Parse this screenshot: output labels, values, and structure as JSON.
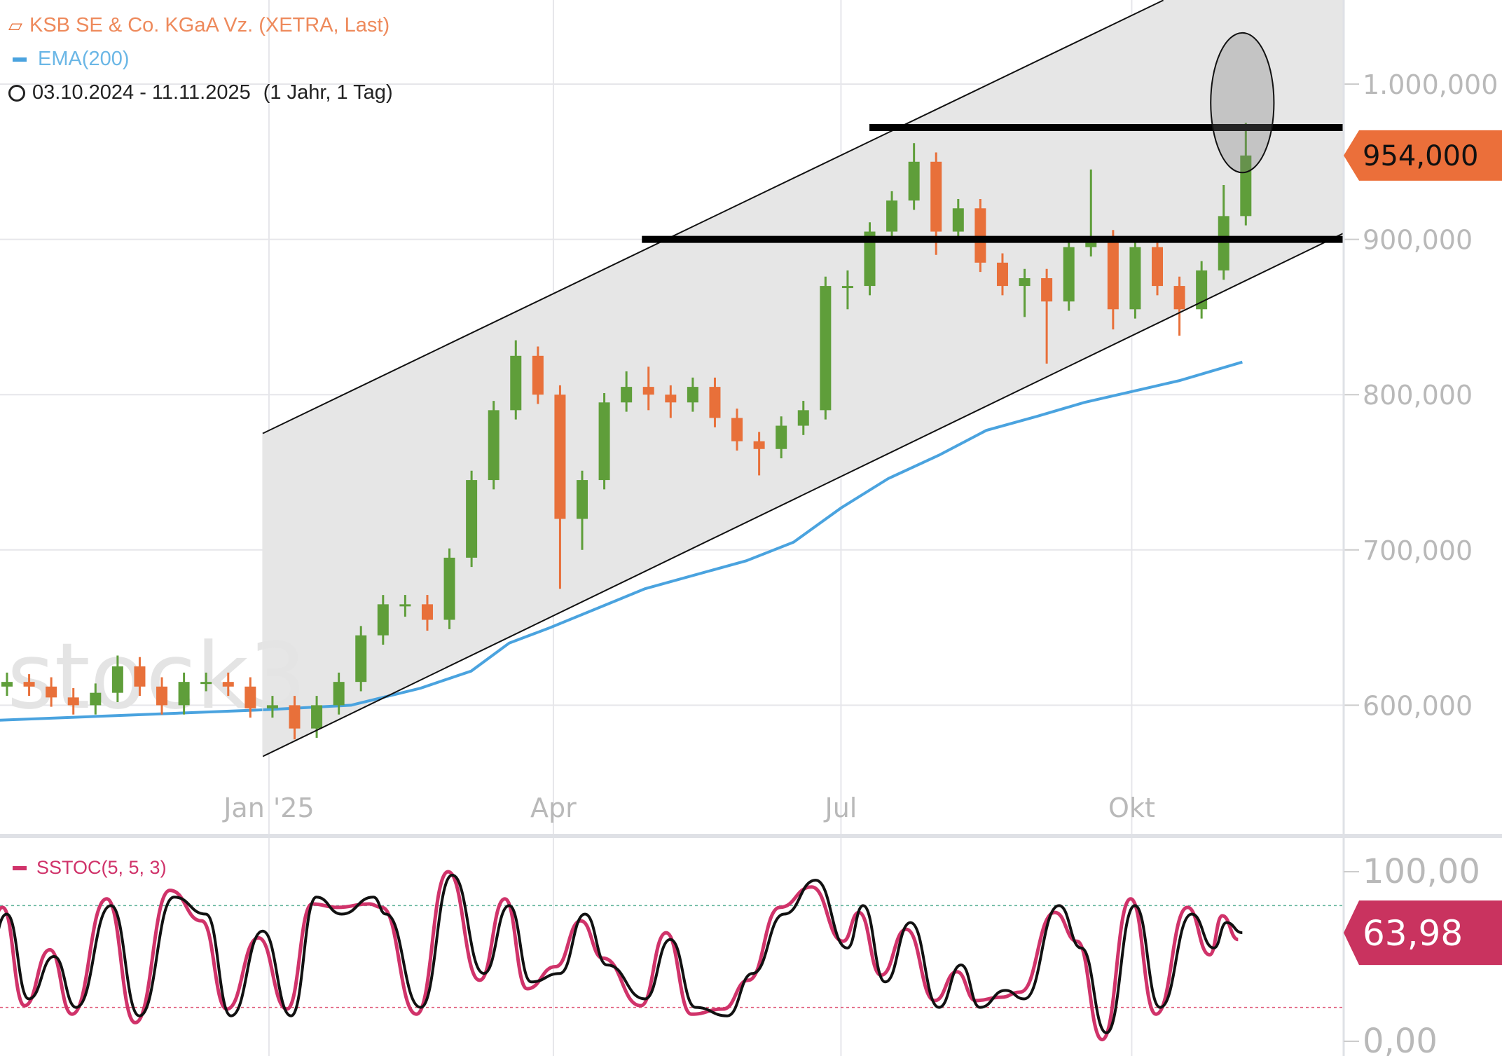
{
  "legend": {
    "instrument": "KSB SE & Co. KGaA Vz. (XETRA, Last)",
    "ema": "EMA(200)",
    "range": "03.10.2024 - 11.11.2025",
    "range_detail": "(1 Jahr, 1 Tag)",
    "stoch": "SSTOC(5, 5, 3)",
    "watermark": "stock3"
  },
  "colors": {
    "up": "#5f9e3a",
    "down": "#e8703a",
    "ema": "#4aa3df",
    "stoch_fast": "#d0336a",
    "stoch_slow": "#111111",
    "last_price_badge": "#eb6f3a",
    "stoch_badge": "#c9335f"
  },
  "chart_data": [
    {
      "type": "candlestick",
      "ylim": [
        540,
        1040
      ],
      "grid": true,
      "y_ticks": [
        {
          "value": 1000,
          "label": "1.000,000"
        },
        {
          "value": 900,
          "label": "900,000"
        },
        {
          "value": 800,
          "label": "800,000"
        },
        {
          "value": 700,
          "label": "700,000"
        },
        {
          "value": 600,
          "label": "600,000"
        }
      ],
      "x_ticks": [
        {
          "date": "2025-01-01",
          "label": "Jan '25"
        },
        {
          "date": "2025-04-01",
          "label": "Apr"
        },
        {
          "date": "2025-07-01",
          "label": "Jul"
        },
        {
          "date": "2025-10-01",
          "label": "Okt"
        }
      ],
      "last_price": {
        "value": 954,
        "label": "954,000"
      },
      "candles": [
        [
          "2024-10-07",
          612,
          621,
          606,
          615
        ],
        [
          "2024-10-14",
          615,
          620,
          606,
          612
        ],
        [
          "2024-10-21",
          612,
          618,
          599,
          605
        ],
        [
          "2024-10-28",
          605,
          611,
          594,
          600
        ],
        [
          "2024-11-04",
          600,
          614,
          594,
          608
        ],
        [
          "2024-11-11",
          608,
          632,
          602,
          625
        ],
        [
          "2024-11-18",
          625,
          631,
          606,
          612
        ],
        [
          "2024-11-25",
          612,
          618,
          594,
          600
        ],
        [
          "2024-12-02",
          600,
          621,
          594,
          615
        ],
        [
          "2024-12-09",
          615,
          621,
          609,
          615
        ],
        [
          "2024-12-16",
          615,
          621,
          606,
          612
        ],
        [
          "2024-12-23",
          612,
          618,
          592,
          598
        ],
        [
          "2024-12-30",
          598,
          606,
          592,
          600
        ],
        [
          "2025-01-06",
          600,
          606,
          578,
          585
        ],
        [
          "2025-01-13",
          585,
          606,
          579,
          600
        ],
        [
          "2025-01-20",
          600,
          621,
          594,
          615
        ],
        [
          "2025-01-27",
          615,
          651,
          609,
          645
        ],
        [
          "2025-02-03",
          645,
          671,
          639,
          665
        ],
        [
          "2025-02-10",
          665,
          671,
          657,
          665
        ],
        [
          "2025-02-17",
          665,
          671,
          648,
          655
        ],
        [
          "2025-02-24",
          655,
          701,
          649,
          695
        ],
        [
          "2025-03-03",
          695,
          751,
          689,
          745
        ],
        [
          "2025-03-10",
          745,
          796,
          739,
          790
        ],
        [
          "2025-03-17",
          790,
          835,
          784,
          825
        ],
        [
          "2025-03-24",
          825,
          831,
          794,
          800
        ],
        [
          "2025-03-31",
          800,
          806,
          675,
          720
        ],
        [
          "2025-04-07",
          720,
          751,
          700,
          745
        ],
        [
          "2025-04-14",
          745,
          801,
          739,
          795
        ],
        [
          "2025-04-21",
          795,
          815,
          789,
          805
        ],
        [
          "2025-04-28",
          805,
          818,
          790,
          800
        ],
        [
          "2025-05-05",
          800,
          806,
          785,
          795
        ],
        [
          "2025-05-12",
          795,
          811,
          789,
          805
        ],
        [
          "2025-05-19",
          805,
          811,
          779,
          785
        ],
        [
          "2025-05-26",
          785,
          791,
          764,
          770
        ],
        [
          "2025-06-02",
          770,
          776,
          748,
          765
        ],
        [
          "2025-06-09",
          765,
          786,
          759,
          780
        ],
        [
          "2025-06-16",
          780,
          796,
          774,
          790
        ],
        [
          "2025-06-23",
          790,
          876,
          784,
          870
        ],
        [
          "2025-06-30",
          870,
          880,
          855,
          870
        ],
        [
          "2025-07-07",
          870,
          911,
          864,
          905
        ],
        [
          "2025-07-14",
          905,
          931,
          899,
          925
        ],
        [
          "2025-07-21",
          925,
          962,
          919,
          950
        ],
        [
          "2025-07-28",
          950,
          956,
          890,
          905
        ],
        [
          "2025-08-04",
          905,
          926,
          899,
          920
        ],
        [
          "2025-08-11",
          920,
          926,
          879,
          885
        ],
        [
          "2025-08-18",
          885,
          891,
          864,
          870
        ],
        [
          "2025-08-25",
          870,
          881,
          850,
          875
        ],
        [
          "2025-09-01",
          875,
          881,
          820,
          860
        ],
        [
          "2025-09-08",
          860,
          901,
          854,
          895
        ],
        [
          "2025-09-15",
          895,
          945,
          889,
          900
        ],
        [
          "2025-09-22",
          900,
          906,
          842,
          855
        ],
        [
          "2025-09-29",
          855,
          901,
          849,
          895
        ],
        [
          "2025-10-06",
          895,
          901,
          864,
          870
        ],
        [
          "2025-10-13",
          870,
          876,
          838,
          855
        ],
        [
          "2025-10-20",
          855,
          886,
          849,
          880
        ],
        [
          "2025-10-27",
          880,
          935,
          874,
          915
        ],
        [
          "2025-11-03",
          915,
          975,
          909,
          954
        ]
      ],
      "ema200": [
        [
          "2024-10-03",
          590
        ],
        [
          "2024-12-30",
          597
        ],
        [
          "2025-01-27",
          600
        ],
        [
          "2025-02-18",
          611
        ],
        [
          "2025-03-06",
          622
        ],
        [
          "2025-03-18",
          640
        ],
        [
          "2025-03-31",
          650
        ],
        [
          "2025-04-30",
          675
        ],
        [
          "2025-06-01",
          693
        ],
        [
          "2025-06-16",
          705
        ],
        [
          "2025-07-01",
          727
        ],
        [
          "2025-07-16",
          746
        ],
        [
          "2025-08-01",
          761
        ],
        [
          "2025-08-16",
          777
        ],
        [
          "2025-09-01",
          786
        ],
        [
          "2025-09-16",
          795
        ],
        [
          "2025-10-01",
          802
        ],
        [
          "2025-10-16",
          809
        ],
        [
          "2025-11-05",
          821
        ]
      ],
      "annotations": {
        "channel_upper": [
          [
            "2024-12-30",
            775
          ],
          [
            "2025-10-11",
            1054
          ]
        ],
        "channel_lower": [
          [
            "2024-12-30",
            567
          ],
          [
            "2025-12-02",
            899
          ]
        ],
        "horizontal_lines": [
          {
            "from": "2025-04-29",
            "to": "2025-12-02",
            "value": 900
          },
          {
            "from": "2025-07-10",
            "to": "2025-12-02",
            "value": 972
          }
        ],
        "ellipse": {
          "center": [
            "2025-11-05",
            988
          ],
          "radius_days": 10,
          "radius_price": 45
        }
      }
    },
    {
      "type": "line",
      "title": "SSTOC(5, 5, 3)",
      "ylim": [
        0,
        100
      ],
      "y_ticks": [
        {
          "value": 100,
          "label": "100,00"
        },
        {
          "value": 0,
          "label": "0,00"
        }
      ],
      "levels": [
        80,
        20
      ],
      "last_value": {
        "value": 63.98,
        "label": "63,98"
      },
      "slow": [
        [
          "2024-10-03",
          40
        ],
        [
          "2024-10-10",
          75
        ],
        [
          "2024-10-17",
          25
        ],
        [
          "2024-10-25",
          50
        ],
        [
          "2024-11-01",
          20
        ],
        [
          "2024-11-12",
          80
        ],
        [
          "2024-11-21",
          15
        ],
        [
          "2024-12-02",
          85
        ],
        [
          "2024-12-12",
          75
        ],
        [
          "2024-12-20",
          15
        ],
        [
          "2024-12-30",
          65
        ],
        [
          "2025-01-08",
          15
        ],
        [
          "2025-01-16",
          85
        ],
        [
          "2025-01-24",
          75
        ],
        [
          "2025-02-03",
          85
        ],
        [
          "2025-02-07",
          75
        ],
        [
          "2025-02-18",
          20
        ],
        [
          "2025-02-28",
          98
        ],
        [
          "2025-03-10",
          40
        ],
        [
          "2025-03-18",
          80
        ],
        [
          "2025-03-25",
          35
        ],
        [
          "2025-04-03",
          40
        ],
        [
          "2025-04-11",
          75
        ],
        [
          "2025-04-18",
          45
        ],
        [
          "2025-04-30",
          25
        ],
        [
          "2025-05-08",
          60
        ],
        [
          "2025-05-16",
          20
        ],
        [
          "2025-05-26",
          15
        ],
        [
          "2025-06-03",
          40
        ],
        [
          "2025-06-13",
          75
        ],
        [
          "2025-06-23",
          95
        ],
        [
          "2025-07-03",
          55
        ],
        [
          "2025-07-08",
          80
        ],
        [
          "2025-07-15",
          35
        ],
        [
          "2025-07-23",
          70
        ],
        [
          "2025-08-01",
          20
        ],
        [
          "2025-08-08",
          45
        ],
        [
          "2025-08-14",
          20
        ],
        [
          "2025-08-22",
          30
        ],
        [
          "2025-08-28",
          25
        ],
        [
          "2025-09-08",
          80
        ],
        [
          "2025-09-15",
          55
        ],
        [
          "2025-09-23",
          5
        ],
        [
          "2025-10-02",
          80
        ],
        [
          "2025-10-10",
          20
        ],
        [
          "2025-10-20",
          75
        ],
        [
          "2025-10-27",
          55
        ],
        [
          "2025-10-31",
          70
        ],
        [
          "2025-11-05",
          64
        ]
      ]
    }
  ]
}
